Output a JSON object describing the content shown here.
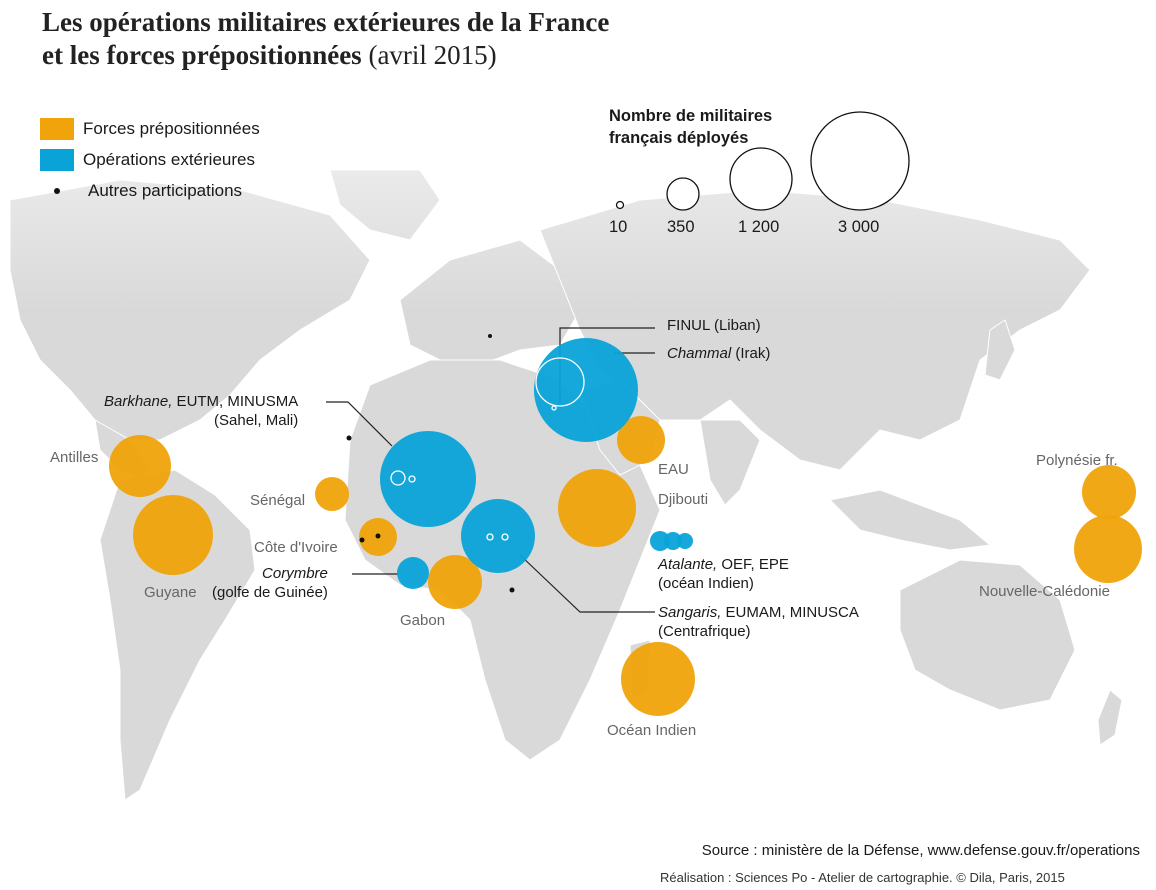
{
  "title": {
    "line1": "Les opérations militaires extérieures de la France",
    "line2_bold": "et les forces prépositionnées",
    "line2_date": "(avril 2015)"
  },
  "colors": {
    "forces": "#f0a30a",
    "operations": "#0aa3d8",
    "land": "#d8d8d8",
    "label_grey": "#666666"
  },
  "legend": {
    "forces": "Forces prépositionnées",
    "operations": "Opérations extérieures",
    "autres": "Autres participations"
  },
  "size_legend": {
    "title_line1": "Nombre de militaires",
    "title_line2": "français déployés",
    "values": [
      "10",
      "350",
      "1 200",
      "3 000"
    ]
  },
  "labels": {
    "antilles": "Antilles",
    "guyane": "Guyane",
    "senegal": "Sénégal",
    "cote_ivoire": "Côte d'Ivoire",
    "gabon": "Gabon",
    "corymbre_name": "Corymbre",
    "corymbre_place": "(golfe de Guinée)",
    "barkhane_name": "Barkhane,",
    "barkhane_rest": " EUTM, MINUSMA",
    "barkhane_place": "(Sahel, Mali)",
    "finul": "FINUL (Liban)",
    "chammal_name": "Chammal",
    "chammal_place": " (Irak)",
    "eau": "EAU",
    "djibouti": "Djibouti",
    "atalante_name": "Atalante,",
    "atalante_rest": " OEF, EPE",
    "atalante_place": "(océan Indien)",
    "sangaris_name": "Sangaris,",
    "sangaris_rest": " EUMAM, MINUSCA",
    "sangaris_place": "(Centrafrique)",
    "ocean_indien": "Océan Indien",
    "polynesie": "Polynésie fr.",
    "nouvelle_caledonie": "Nouvelle-Calédonie"
  },
  "source": "Source : ministère de la Défense, www.defense.gouv.fr/operations",
  "credit": "Réalisation : Sciences Po - Atelier de cartographie. © Dila, Paris, 2015"
}
